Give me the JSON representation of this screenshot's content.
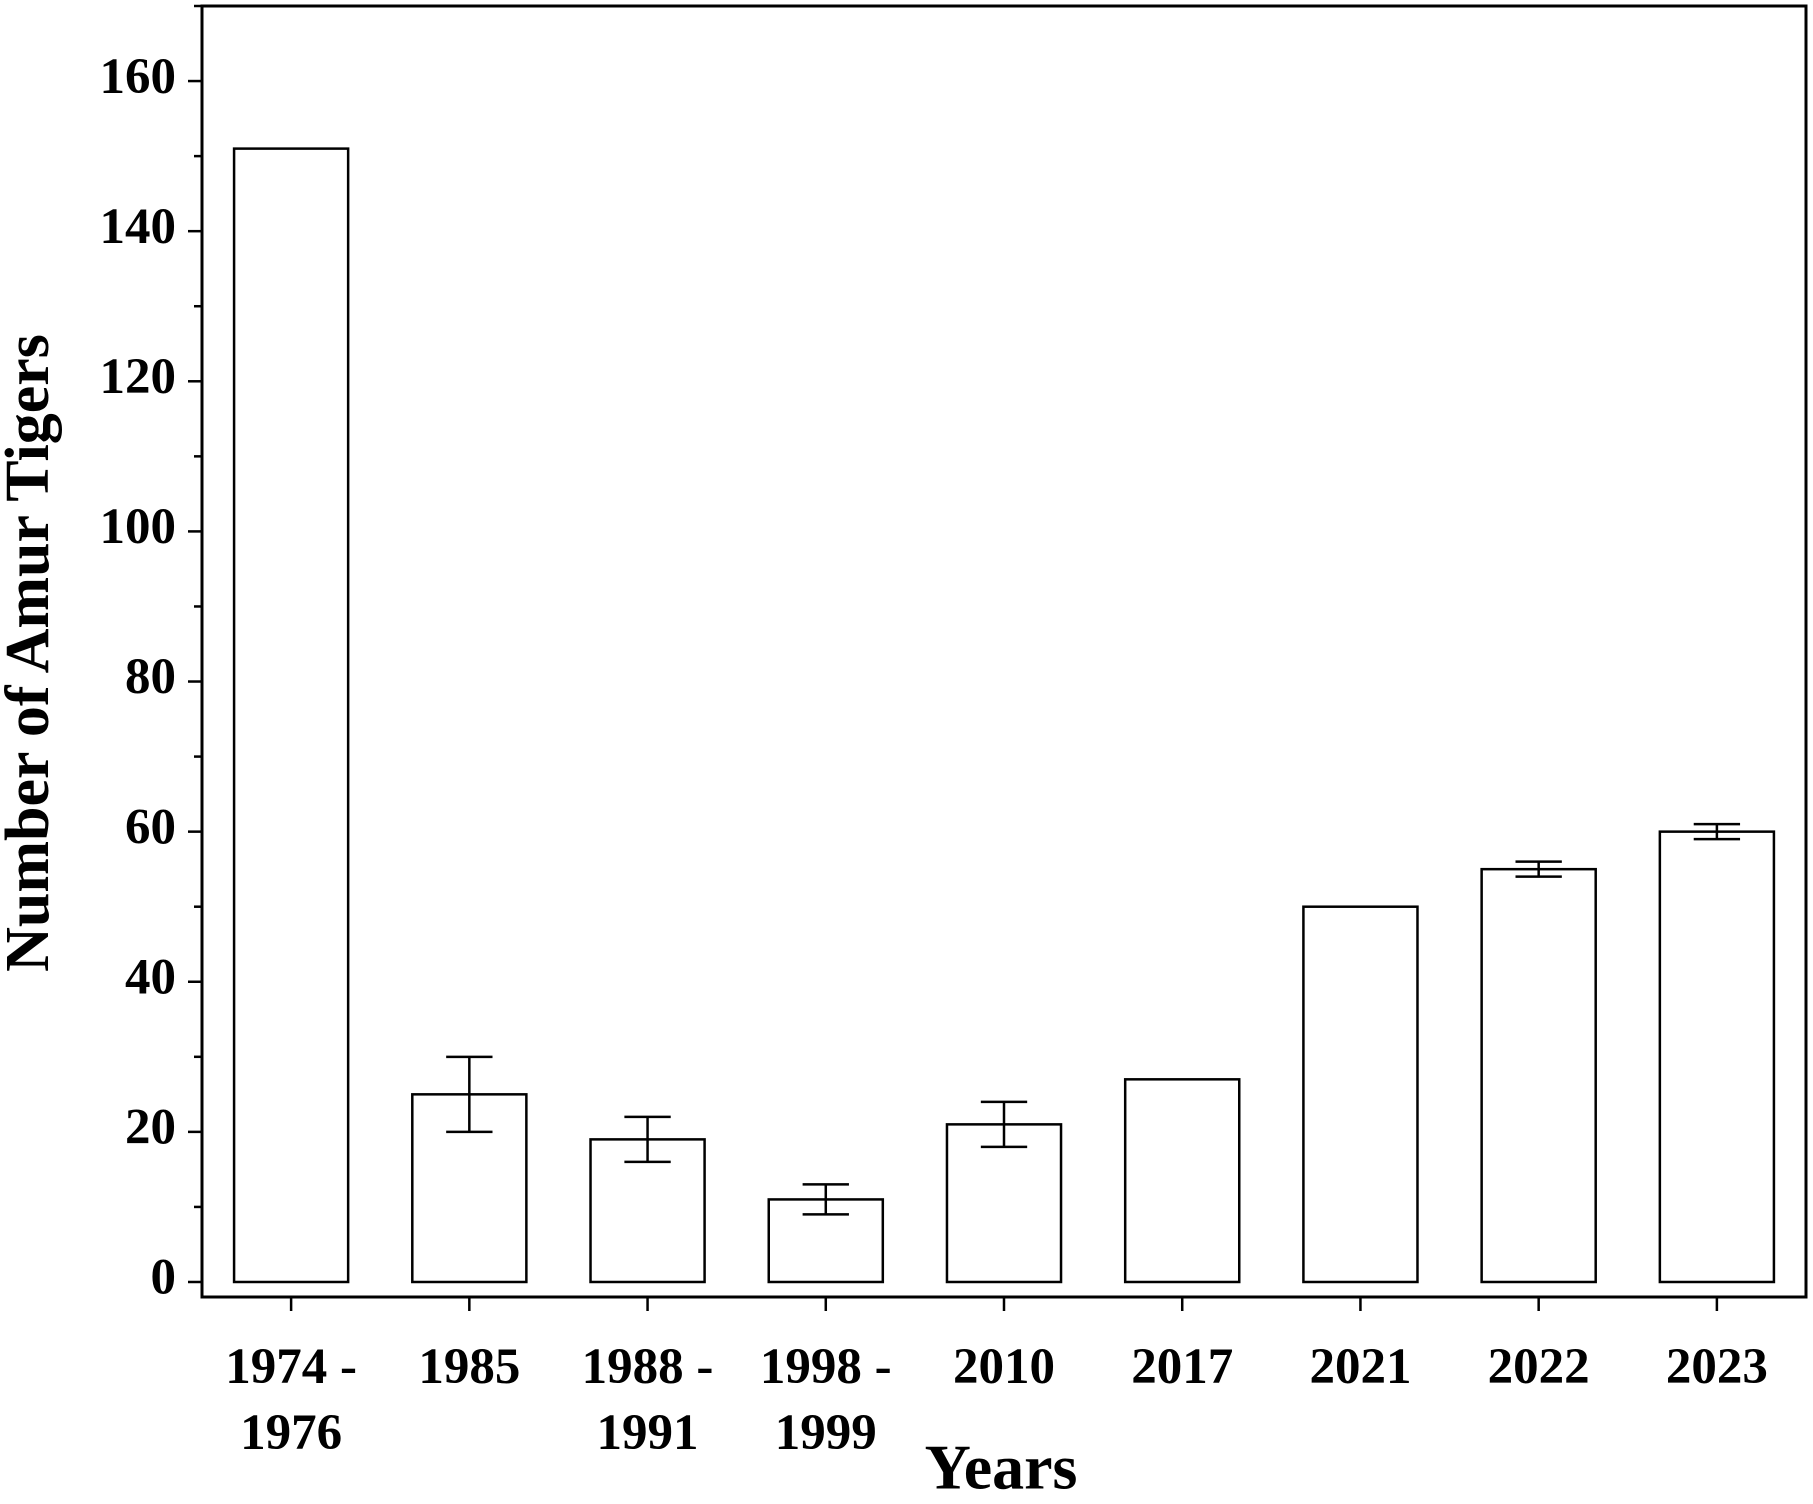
{
  "chart_data": {
    "type": "bar",
    "xlabel": "Years",
    "ylabel": "Number of Amur Tigers",
    "categories": [
      "1974 -\n1976",
      "1985",
      "1988 -\n1991",
      "1998 -\n1999",
      "2010",
      "2017",
      "2021",
      "2022",
      "2023"
    ],
    "values": [
      151,
      25,
      19,
      11,
      21,
      27,
      50,
      55,
      60
    ],
    "errors": [
      null,
      5,
      3,
      2,
      3,
      null,
      null,
      1,
      1
    ],
    "color": "#ffffff",
    "ylim": [
      -2,
      170
    ],
    "yticks": [
      0,
      20,
      40,
      60,
      80,
      100,
      120,
      140,
      160
    ],
    "yminorticks": [
      10,
      30,
      50,
      70,
      90,
      110,
      130,
      150,
      170
    ],
    "grid": false
  }
}
